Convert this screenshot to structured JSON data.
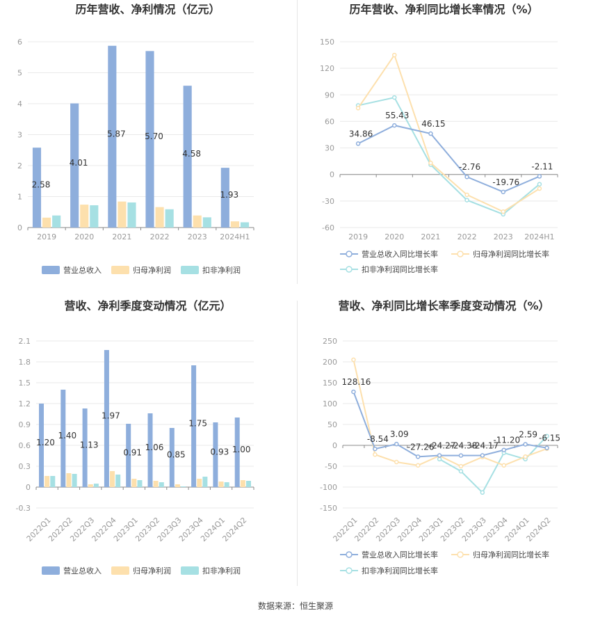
{
  "colors": {
    "revenue": "#8eaedc",
    "net_profit": "#fde0ad",
    "deducted_profit": "#a6e0e3",
    "grid": "#e9e9e9",
    "axis": "#999999",
    "tick": "#999999",
    "label": "#333333"
  },
  "source_text": "数据来源：恒生聚源",
  "chart_data": [
    {
      "type": "bar",
      "title": "历年营收、净利情况（亿元）",
      "categories": [
        "2019",
        "2020",
        "2021",
        "2022",
        "2023",
        "2024H1"
      ],
      "ylim": [
        0,
        6
      ],
      "yticks": [
        0,
        1,
        2,
        3,
        4,
        5,
        6
      ],
      "grid": true,
      "legend_position": "bottom",
      "series": [
        {
          "name": "营业总收入",
          "values": [
            2.58,
            4.01,
            5.87,
            5.7,
            4.58,
            1.93
          ],
          "labels": [
            "2.58",
            "4.01",
            "5.87",
            "5.70",
            "4.58",
            "1.93"
          ]
        },
        {
          "name": "归母净利润",
          "values": [
            0.32,
            0.74,
            0.84,
            0.66,
            0.39,
            0.2
          ]
        },
        {
          "name": "扣非净利润",
          "values": [
            0.39,
            0.72,
            0.81,
            0.59,
            0.33,
            0.17
          ]
        }
      ]
    },
    {
      "type": "line",
      "title": "历年营收、净利同比增长率情况（%）",
      "categories": [
        "2019",
        "2020",
        "2021",
        "2022",
        "2023",
        "2024H1"
      ],
      "ylim": [
        -60,
        150
      ],
      "yticks": [
        -60,
        -30,
        0,
        30,
        60,
        90,
        120,
        150
      ],
      "grid": true,
      "legend_position": "bottom",
      "series": [
        {
          "name": "营业总收入同比增长率",
          "values": [
            34.86,
            55.43,
            46.15,
            -2.76,
            -19.76,
            -2.11
          ],
          "labels": [
            "34.86",
            "55.43",
            "46.15",
            "-2.76",
            "-19.76",
            "-2.11"
          ]
        },
        {
          "name": "归母净利润同比增长率",
          "values": [
            75,
            135,
            13,
            -23,
            -42,
            -16
          ]
        },
        {
          "name": "扣非净利润同比增长率",
          "values": [
            78,
            87,
            11,
            -29,
            -45,
            -11
          ]
        }
      ]
    },
    {
      "type": "bar",
      "title": "营收、净利季度变动情况（亿元）",
      "categories": [
        "2022Q1",
        "2022Q2",
        "2022Q3",
        "2022Q4",
        "2023Q1",
        "2023Q2",
        "2023Q3",
        "2023Q4",
        "2024Q1",
        "2024Q2"
      ],
      "ylim": [
        -0.3,
        2.1
      ],
      "yticks": [
        -0.3,
        0,
        0.3,
        0.6,
        0.9,
        1.2,
        1.5,
        1.8,
        2.1
      ],
      "ytick_labels": [
        "-0.3",
        "0",
        "0.3",
        "0.6",
        "0.9",
        "1.2",
        "1.5",
        "1.8",
        "2.1"
      ],
      "grid": true,
      "legend_position": "bottom",
      "series": [
        {
          "name": "营业总收入",
          "values": [
            1.2,
            1.4,
            1.13,
            1.97,
            0.91,
            1.06,
            0.85,
            1.75,
            0.93,
            1.0
          ],
          "labels": [
            "1.20",
            "1.40",
            "1.13",
            "1.97",
            "0.91",
            "1.06",
            "0.85",
            "1.75",
            "0.93",
            "1.00"
          ]
        },
        {
          "name": "归母净利润",
          "values": [
            0.16,
            0.2,
            0.04,
            0.23,
            0.12,
            0.09,
            0.04,
            0.12,
            0.08,
            0.1
          ]
        },
        {
          "name": "扣非净利润",
          "values": [
            0.16,
            0.19,
            0.05,
            0.18,
            0.1,
            0.07,
            0.01,
            0.15,
            0.07,
            0.09
          ]
        }
      ]
    },
    {
      "type": "line",
      "title": "营收、净利同比增长率季度变动情况（%）",
      "categories": [
        "2022Q1",
        "2022Q2",
        "2022Q3",
        "2022Q4",
        "2023Q1",
        "2023Q2",
        "2023Q3",
        "2023Q4",
        "2024Q1",
        "2024Q2"
      ],
      "ylim": [
        -150,
        250
      ],
      "yticks": [
        -150,
        -100,
        -50,
        0,
        50,
        100,
        150,
        200,
        250
      ],
      "grid": true,
      "legend_position": "bottom",
      "series": [
        {
          "name": "营业总收入同比增长率",
          "values": [
            128.16,
            -8.54,
            3.09,
            -27.26,
            -24.27,
            -24.38,
            -24.17,
            -11.2,
            2.59,
            -6.15
          ],
          "labels": [
            "128.16",
            "-8.54",
            "3.09",
            "-27.26",
            "-24.27",
            "-24.38",
            "-24.17",
            "-11.20",
            "2.59",
            "-6.15"
          ]
        },
        {
          "name": "归母净利润同比增长率",
          "values": [
            205,
            -22,
            -40,
            -48,
            -25,
            -50,
            -28,
            -48,
            -27,
            -8
          ]
        },
        {
          "name": "扣非净利润同比增长率",
          "values": [
            null,
            null,
            null,
            null,
            -33,
            -62,
            -113,
            -18,
            -33,
            22
          ]
        }
      ]
    }
  ]
}
